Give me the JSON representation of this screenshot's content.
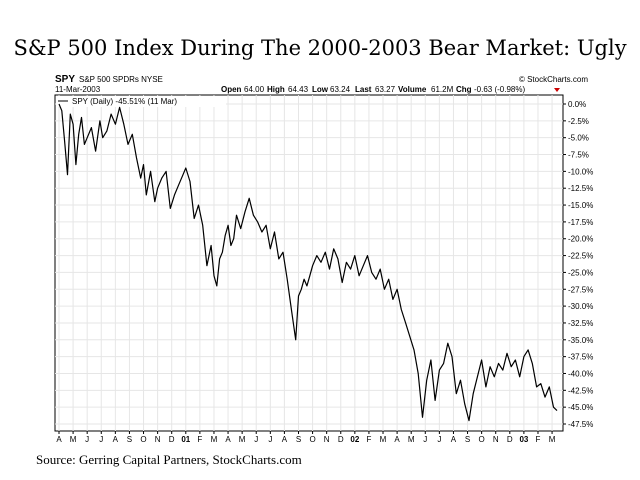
{
  "page": {
    "title": "S&P 500 Index During The 2000-2003 Bear Market: Ugly",
    "source": "Source: Gerring Capital Partners, StockCharts.com"
  },
  "header": {
    "symbol": "SPY",
    "name": "S&P 500 SPDRs NYSE",
    "date": "11-Mar-2003",
    "brand": "© StockCharts.com",
    "open_label": "Open",
    "open": "64.00",
    "high_label": "High",
    "high": "64.43",
    "low_label": "Low",
    "low": "63.24",
    "last_label": "Last",
    "last": "63.27",
    "volume_label": "Volume",
    "volume": "61.2M",
    "chg_label": "Chg",
    "chg": "-0.63 (-0.98%)",
    "legend": "SPY (Daily) -45.51% (11 Mar)"
  },
  "colors": {
    "line": "#000000",
    "grid": "#e6e6e6",
    "down_arrow": "#cc0000"
  },
  "chart_data": {
    "type": "line",
    "title": "S&P 500 Index During The 2000-2003 Bear Market: Ugly",
    "xlabel": "",
    "ylabel": "",
    "ylim": [
      -47.5,
      0
    ],
    "y_ticks": [
      "0.0%",
      "-2.5%",
      "-5.0%",
      "-7.5%",
      "-10.0%",
      "-12.5%",
      "-15.0%",
      "-17.5%",
      "-20.0%",
      "-22.5%",
      "-25.0%",
      "-27.5%",
      "-30.0%",
      "-32.5%",
      "-35.0%",
      "-37.5%",
      "-40.0%",
      "-42.5%",
      "-45.0%",
      "-47.5%"
    ],
    "x_ticks": [
      "A",
      "M",
      "J",
      "J",
      "A",
      "S",
      "O",
      "N",
      "D",
      "01",
      "F",
      "M",
      "A",
      "M",
      "J",
      "J",
      "A",
      "S",
      "O",
      "N",
      "D",
      "02",
      "F",
      "M",
      "A",
      "M",
      "J",
      "J",
      "A",
      "S",
      "O",
      "N",
      "D",
      "03",
      "F",
      "M"
    ],
    "x_range_months": [
      0,
      35.35
    ],
    "grid": true,
    "legend": "top-left",
    "series": [
      {
        "name": "SPY (Daily)",
        "x": [
          0,
          0.2,
          0.4,
          0.6,
          0.8,
          1.0,
          1.2,
          1.4,
          1.6,
          1.8,
          2.0,
          2.3,
          2.6,
          2.9,
          3.1,
          3.4,
          3.7,
          4.0,
          4.3,
          4.6,
          4.9,
          5.2,
          5.5,
          5.8,
          6.0,
          6.2,
          6.5,
          6.8,
          7.0,
          7.3,
          7.6,
          7.9,
          8.2,
          8.5,
          8.8,
          9.0,
          9.3,
          9.6,
          9.9,
          10.2,
          10.5,
          10.8,
          11.0,
          11.2,
          11.4,
          11.6,
          11.8,
          12.0,
          12.2,
          12.4,
          12.6,
          12.9,
          13.2,
          13.5,
          13.8,
          14.1,
          14.4,
          14.7,
          15.0,
          15.3,
          15.6,
          15.9,
          16.2,
          16.5,
          16.8,
          17.0,
          17.2,
          17.4,
          17.6,
          17.8,
          18.0,
          18.3,
          18.6,
          18.9,
          19.2,
          19.5,
          19.8,
          20.1,
          20.4,
          20.7,
          21.0,
          21.3,
          21.6,
          21.9,
          22.2,
          22.5,
          22.8,
          23.1,
          23.4,
          23.7,
          24.0,
          24.3,
          24.6,
          24.9,
          25.2,
          25.5,
          25.8,
          26.1,
          26.4,
          26.7,
          27.0,
          27.3,
          27.6,
          27.9,
          28.2,
          28.5,
          28.8,
          29.1,
          29.4,
          29.7,
          30.0,
          30.3,
          30.6,
          30.9,
          31.2,
          31.5,
          31.8,
          32.1,
          32.4,
          32.7,
          33.0,
          33.3,
          33.6,
          33.9,
          34.2,
          34.5,
          34.8,
          35.1,
          35.35
        ],
        "values": [
          0.0,
          -1.0,
          -5.5,
          -10.5,
          -1.5,
          -3.0,
          -9.0,
          -4.5,
          -2.0,
          -6.0,
          -5.0,
          -3.5,
          -7.0,
          -2.5,
          -5.0,
          -4.0,
          -1.5,
          -3.0,
          -0.5,
          -3.0,
          -6.0,
          -4.5,
          -8.0,
          -11.0,
          -9.0,
          -13.5,
          -10.0,
          -14.5,
          -12.5,
          -11.0,
          -10.0,
          -15.5,
          -13.5,
          -12.0,
          -10.5,
          -9.5,
          -11.5,
          -17.0,
          -15.0,
          -18.0,
          -24.0,
          -21.0,
          -25.5,
          -27.0,
          -23.0,
          -22.0,
          -19.5,
          -18.0,
          -21.0,
          -20.0,
          -16.5,
          -18.5,
          -16.0,
          -14.0,
          -16.5,
          -17.5,
          -19.0,
          -18.0,
          -21.5,
          -19.0,
          -23.0,
          -22.0,
          -26.0,
          -30.5,
          -35.0,
          -28.5,
          -27.5,
          -26.0,
          -27.0,
          -25.5,
          -24.0,
          -22.5,
          -23.5,
          -22.0,
          -24.5,
          -21.5,
          -23.0,
          -26.5,
          -23.5,
          -24.5,
          -22.5,
          -25.5,
          -24.0,
          -22.5,
          -25.0,
          -26.0,
          -24.5,
          -27.5,
          -26.0,
          -29.0,
          -27.5,
          -30.5,
          -32.5,
          -34.5,
          -36.5,
          -40.0,
          -46.5,
          -41.0,
          -38.0,
          -44.0,
          -39.5,
          -38.5,
          -35.5,
          -37.5,
          -43.0,
          -41.0,
          -44.5,
          -47.0,
          -43.0,
          -40.5,
          -38.0,
          -42.0,
          -39.0,
          -40.5,
          -38.5,
          -39.5,
          -37.0,
          -39.0,
          -38.0,
          -40.5,
          -37.5,
          -36.5,
          -38.5,
          -42.0,
          -41.5,
          -43.5,
          -42.0,
          -45.0,
          -45.51
        ]
      }
    ]
  }
}
